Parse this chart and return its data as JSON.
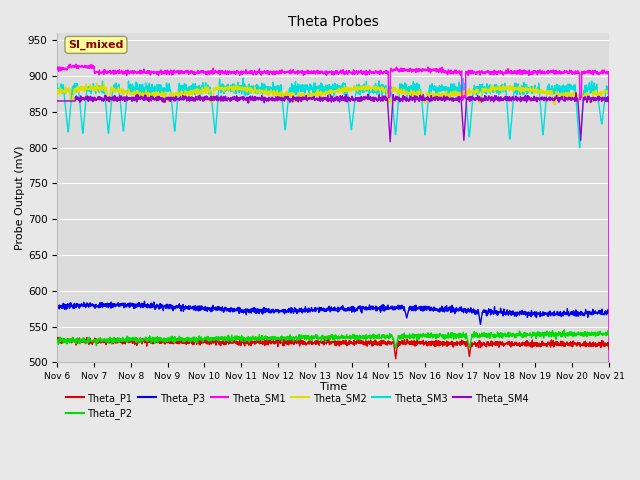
{
  "title": "Theta Probes",
  "xlabel": "Time",
  "ylabel": "Probe Output (mV)",
  "ylim": [
    500,
    960
  ],
  "yticks": [
    500,
    550,
    600,
    650,
    700,
    750,
    800,
    850,
    900,
    950
  ],
  "xtick_labels": [
    "Nov 6",
    "Nov 7",
    "Nov 8",
    "Nov 9",
    "Nov 10",
    "Nov 11",
    "Nov 12",
    "Nov 13",
    "Nov 14",
    "Nov 15",
    "Nov 16",
    "Nov 17",
    "Nov 18",
    "Nov 19",
    "Nov 20",
    "Nov 21"
  ],
  "background_color": "#e8e8e8",
  "axes_bg_color": "#dcdcdc",
  "grid_color": "#f5f5f5",
  "annotation_text": "SI_mixed",
  "annotation_color": "#8b0000",
  "annotation_bg": "#ffff99",
  "colors": {
    "P1": "#dd0000",
    "P2": "#00dd00",
    "P3": "#0000ee",
    "SM1": "#ff00ff",
    "SM2": "#dddd00",
    "SM3": "#00dddd",
    "SM4": "#9900cc"
  }
}
